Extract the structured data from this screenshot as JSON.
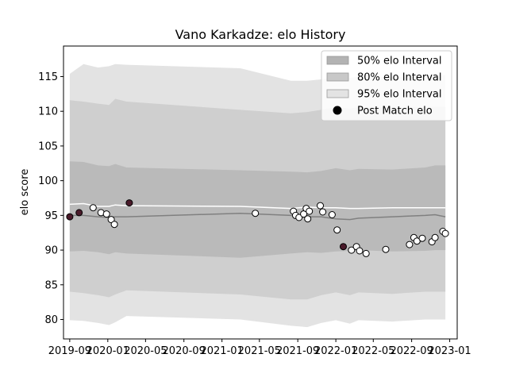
{
  "chart_data": {
    "type": "line",
    "title": "Vano Karkadze: elo History",
    "xlabel": "",
    "ylabel": "elo score",
    "xlim": [
      "2019-08-12",
      "2023-01-25"
    ],
    "ylim": [
      77.2,
      119.4
    ],
    "x_ticks": [
      "2019-09",
      "2020-01",
      "2020-05",
      "2020-09",
      "2021-01",
      "2021-05",
      "2021-09",
      "2022-01",
      "2022-05",
      "2022-09",
      "2023-01"
    ],
    "y_ticks": [
      80,
      85,
      90,
      95,
      100,
      105,
      110,
      115
    ],
    "grid": false,
    "legend_position": "top-right",
    "legend": [
      {
        "label": "50% elo Interval",
        "kind": "band",
        "color": "#b3b3b3"
      },
      {
        "label": "80% elo Interval",
        "kind": "band",
        "color": "#c8c8c8"
      },
      {
        "label": "95% elo Interval",
        "kind": "band",
        "color": "#e3e3e3"
      },
      {
        "label": "Post Match elo",
        "kind": "marker",
        "color": "#000000"
      }
    ],
    "colors": {
      "band95": "#e3e3e3",
      "band80": "#cfcfcf",
      "band50": "#bababa",
      "median": "#808080",
      "mean": "#ffffff",
      "win": "#ffffff",
      "loss": "#4a1a2a"
    },
    "bands": [
      {
        "date": "2019-09-01",
        "lo95": 79.9,
        "lo80": 84.0,
        "lo50": 89.8,
        "median": 95.0,
        "mean": 96.6,
        "hi50": 102.8,
        "hi80": 111.6,
        "hi95": 115.4
      },
      {
        "date": "2019-10-15",
        "lo95": 79.8,
        "lo80": 83.8,
        "lo50": 89.9,
        "median": 95.0,
        "mean": 96.7,
        "hi50": 102.7,
        "hi80": 111.4,
        "hi95": 116.8
      },
      {
        "date": "2019-12-01",
        "lo95": 79.5,
        "lo80": 83.5,
        "lo50": 89.7,
        "median": 94.8,
        "mean": 96.3,
        "hi50": 102.2,
        "hi80": 111.1,
        "hi95": 116.3
      },
      {
        "date": "2020-01-05",
        "lo95": 79.2,
        "lo80": 83.2,
        "lo50": 89.4,
        "median": 94.7,
        "mean": 96.3,
        "hi50": 102.1,
        "hi80": 110.9,
        "hi95": 116.5
      },
      {
        "date": "2020-01-25",
        "lo95": 79.6,
        "lo80": 83.6,
        "lo50": 89.7,
        "median": 94.8,
        "mean": 96.5,
        "hi50": 102.4,
        "hi80": 111.8,
        "hi95": 116.8
      },
      {
        "date": "2020-03-01",
        "lo95": 80.5,
        "lo80": 84.2,
        "lo50": 89.5,
        "median": 94.8,
        "mean": 96.4,
        "hi50": 101.9,
        "hi80": 111.4,
        "hi95": 116.7
      },
      {
        "date": "2021-03-01",
        "lo95": 80.0,
        "lo80": 83.6,
        "lo50": 88.9,
        "median": 95.3,
        "mean": 96.3,
        "hi50": 101.5,
        "hi80": 110.2,
        "hi95": 116.2
      },
      {
        "date": "2021-08-10",
        "lo95": 79.1,
        "lo80": 82.9,
        "lo50": 89.5,
        "median": 95.0,
        "mean": 96.0,
        "hi50": 101.3,
        "hi80": 109.7,
        "hi95": 114.4
      },
      {
        "date": "2021-10-01",
        "lo95": 78.9,
        "lo80": 82.9,
        "lo50": 89.7,
        "median": 94.8,
        "mean": 96.2,
        "hi50": 101.2,
        "hi80": 109.9,
        "hi95": 114.4
      },
      {
        "date": "2021-11-15",
        "lo95": 79.5,
        "lo80": 83.5,
        "lo50": 89.6,
        "median": 94.8,
        "mean": 96.1,
        "hi50": 101.4,
        "hi80": 110.2,
        "hi95": 114.6
      },
      {
        "date": "2022-01-01",
        "lo95": 79.9,
        "lo80": 83.9,
        "lo50": 89.8,
        "median": 94.5,
        "mean": 96.1,
        "hi50": 101.8,
        "hi80": 110.6,
        "hi95": 115.0
      },
      {
        "date": "2022-02-15",
        "lo95": 79.4,
        "lo80": 83.5,
        "lo50": 89.9,
        "median": 94.4,
        "mean": 96.0,
        "hi50": 101.5,
        "hi80": 110.4,
        "hi95": 114.8
      },
      {
        "date": "2022-03-15",
        "lo95": 79.9,
        "lo80": 83.9,
        "lo50": 90.0,
        "median": 94.6,
        "mean": 96.0,
        "hi50": 101.7,
        "hi80": 110.6,
        "hi95": 115.0
      },
      {
        "date": "2022-07-01",
        "lo95": 79.7,
        "lo80": 83.7,
        "lo50": 89.8,
        "median": 94.8,
        "mean": 96.1,
        "hi50": 101.6,
        "hi80": 110.5,
        "hi95": 114.9
      },
      {
        "date": "2022-10-15",
        "lo95": 80.0,
        "lo80": 84.0,
        "lo50": 89.9,
        "median": 95.0,
        "mean": 96.1,
        "hi50": 101.9,
        "hi80": 110.6,
        "hi95": 115.1
      },
      {
        "date": "2022-11-15",
        "lo95": 80.0,
        "lo80": 84.0,
        "lo50": 90.0,
        "median": 95.1,
        "mean": 96.1,
        "hi50": 102.2,
        "hi80": 110.6,
        "hi95": 115.3
      },
      {
        "date": "2022-12-18",
        "lo95": 80.0,
        "lo80": 84.0,
        "lo50": 90.0,
        "median": 94.8,
        "mean": 96.1,
        "hi50": 102.2,
        "hi80": 110.6,
        "hi95": 115.2
      }
    ],
    "points": [
      {
        "date": "2019-09-01",
        "elo": 94.8,
        "result": "loss"
      },
      {
        "date": "2019-10-01",
        "elo": 95.4,
        "result": "loss"
      },
      {
        "date": "2019-11-15",
        "elo": 96.1,
        "result": "win"
      },
      {
        "date": "2019-12-10",
        "elo": 95.4,
        "result": "win"
      },
      {
        "date": "2019-12-28",
        "elo": 95.2,
        "result": "win"
      },
      {
        "date": "2020-01-12",
        "elo": 94.4,
        "result": "win"
      },
      {
        "date": "2020-01-22",
        "elo": 93.7,
        "result": "win"
      },
      {
        "date": "2020-03-10",
        "elo": 96.8,
        "result": "loss"
      },
      {
        "date": "2021-04-18",
        "elo": 95.3,
        "result": "win"
      },
      {
        "date": "2021-08-18",
        "elo": 95.6,
        "result": "win"
      },
      {
        "date": "2021-08-25",
        "elo": 95.0,
        "result": "win"
      },
      {
        "date": "2021-09-05",
        "elo": 94.7,
        "result": "win"
      },
      {
        "date": "2021-09-20",
        "elo": 95.2,
        "result": "win"
      },
      {
        "date": "2021-09-28",
        "elo": 96.0,
        "result": "win"
      },
      {
        "date": "2021-10-03",
        "elo": 94.5,
        "result": "win"
      },
      {
        "date": "2021-10-08",
        "elo": 95.6,
        "result": "win"
      },
      {
        "date": "2021-11-12",
        "elo": 96.4,
        "result": "win"
      },
      {
        "date": "2021-11-20",
        "elo": 95.5,
        "result": "win"
      },
      {
        "date": "2021-12-20",
        "elo": 95.1,
        "result": "win"
      },
      {
        "date": "2022-01-05",
        "elo": 92.9,
        "result": "win"
      },
      {
        "date": "2022-01-25",
        "elo": 90.5,
        "result": "loss"
      },
      {
        "date": "2022-02-20",
        "elo": 90.0,
        "result": "win"
      },
      {
        "date": "2022-03-08",
        "elo": 90.5,
        "result": "win"
      },
      {
        "date": "2022-03-18",
        "elo": 89.9,
        "result": "win"
      },
      {
        "date": "2022-04-08",
        "elo": 89.5,
        "result": "win"
      },
      {
        "date": "2022-06-10",
        "elo": 90.1,
        "result": "win"
      },
      {
        "date": "2022-08-25",
        "elo": 90.8,
        "result": "win"
      },
      {
        "date": "2022-09-08",
        "elo": 91.8,
        "result": "win"
      },
      {
        "date": "2022-09-18",
        "elo": 91.3,
        "result": "win"
      },
      {
        "date": "2022-10-05",
        "elo": 91.7,
        "result": "win"
      },
      {
        "date": "2022-11-05",
        "elo": 91.2,
        "result": "win"
      },
      {
        "date": "2022-11-15",
        "elo": 91.8,
        "result": "win"
      },
      {
        "date": "2022-12-10",
        "elo": 92.7,
        "result": "win"
      },
      {
        "date": "2022-12-18",
        "elo": 92.4,
        "result": "win"
      }
    ]
  }
}
